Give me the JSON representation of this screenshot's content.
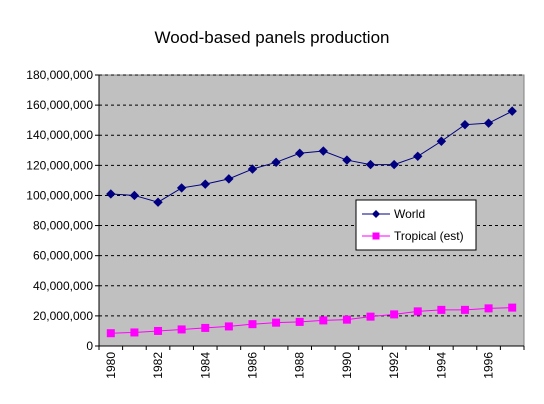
{
  "chart_data": {
    "type": "line",
    "title": "Wood-based panels production",
    "xlabel": "",
    "ylabel": "",
    "x": [
      1980,
      1981,
      1982,
      1983,
      1984,
      1985,
      1986,
      1987,
      1988,
      1989,
      1990,
      1991,
      1992,
      1993,
      1994,
      1995,
      1996,
      1997
    ],
    "x_tick_labels": [
      "1980",
      "1982",
      "1984",
      "1986",
      "1988",
      "1990",
      "1992",
      "1994",
      "1996"
    ],
    "ylim": [
      0,
      180000000
    ],
    "y_tick_labels": [
      "0",
      "20,000,000",
      "40,000,000",
      "60,000,000",
      "80,000,000",
      "100,000,000",
      "120,000,000",
      "140,000,000",
      "160,000,000",
      "180,000,000"
    ],
    "grid": "horizontal dashed",
    "legend_position": "right",
    "plot_background": "#c0c0c0",
    "series": [
      {
        "name": "World",
        "color": "#000080",
        "marker": "diamond",
        "values": [
          101000000,
          100000000,
          95500000,
          105000000,
          107500000,
          111000000,
          117500000,
          122000000,
          128000000,
          129500000,
          123500000,
          120500000,
          120500000,
          126000000,
          136000000,
          147000000,
          148000000,
          156000000
        ]
      },
      {
        "name": "Tropical (est)",
        "color": "#ff00ff",
        "marker": "square",
        "values": [
          8500000,
          9000000,
          10000000,
          11000000,
          12000000,
          13000000,
          14500000,
          15500000,
          16000000,
          17000000,
          17500000,
          19500000,
          21000000,
          23000000,
          24000000,
          24000000,
          25000000,
          25500000
        ]
      }
    ]
  }
}
